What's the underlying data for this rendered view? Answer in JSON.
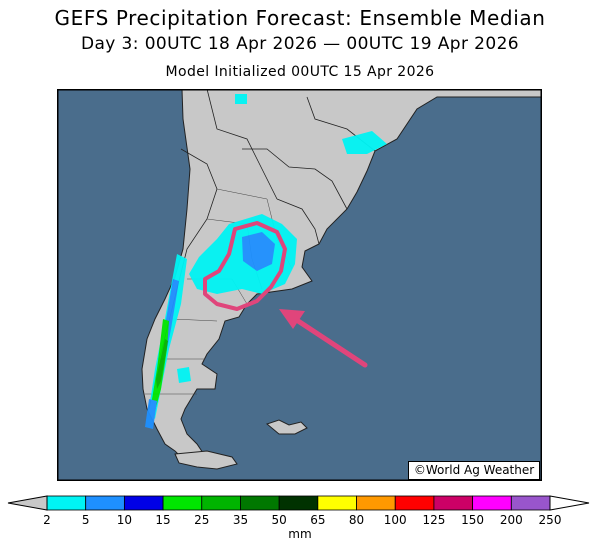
{
  "header": {
    "title": "GEFS Precipitation Forecast: Ensemble Median",
    "period": "Day 3: 00UTC 18 Apr 2026 — 00UTC 19 Apr 2026",
    "init": "Model Initialized 00UTC 15 Apr 2026"
  },
  "map": {
    "credit": "©World Ag Weather",
    "ocean_color": "#4a6d8c",
    "land_color": "#c8c8c8",
    "highlight_color": "#e0457b",
    "annotation": "pink outline and arrow marking central Argentina"
  },
  "legend": {
    "unit": "mm",
    "ticks": [
      "2",
      "5",
      "10",
      "15",
      "25",
      "35",
      "50",
      "65",
      "80",
      "100",
      "125",
      "150",
      "200",
      "250"
    ],
    "colors": [
      "#00f4f4",
      "#1e90ff",
      "#0000e6",
      "#00e600",
      "#00b400",
      "#007800",
      "#003200",
      "#ffff00",
      "#ff9900",
      "#ff0000",
      "#cc0066",
      "#ff00ff",
      "#9955cc"
    ]
  }
}
